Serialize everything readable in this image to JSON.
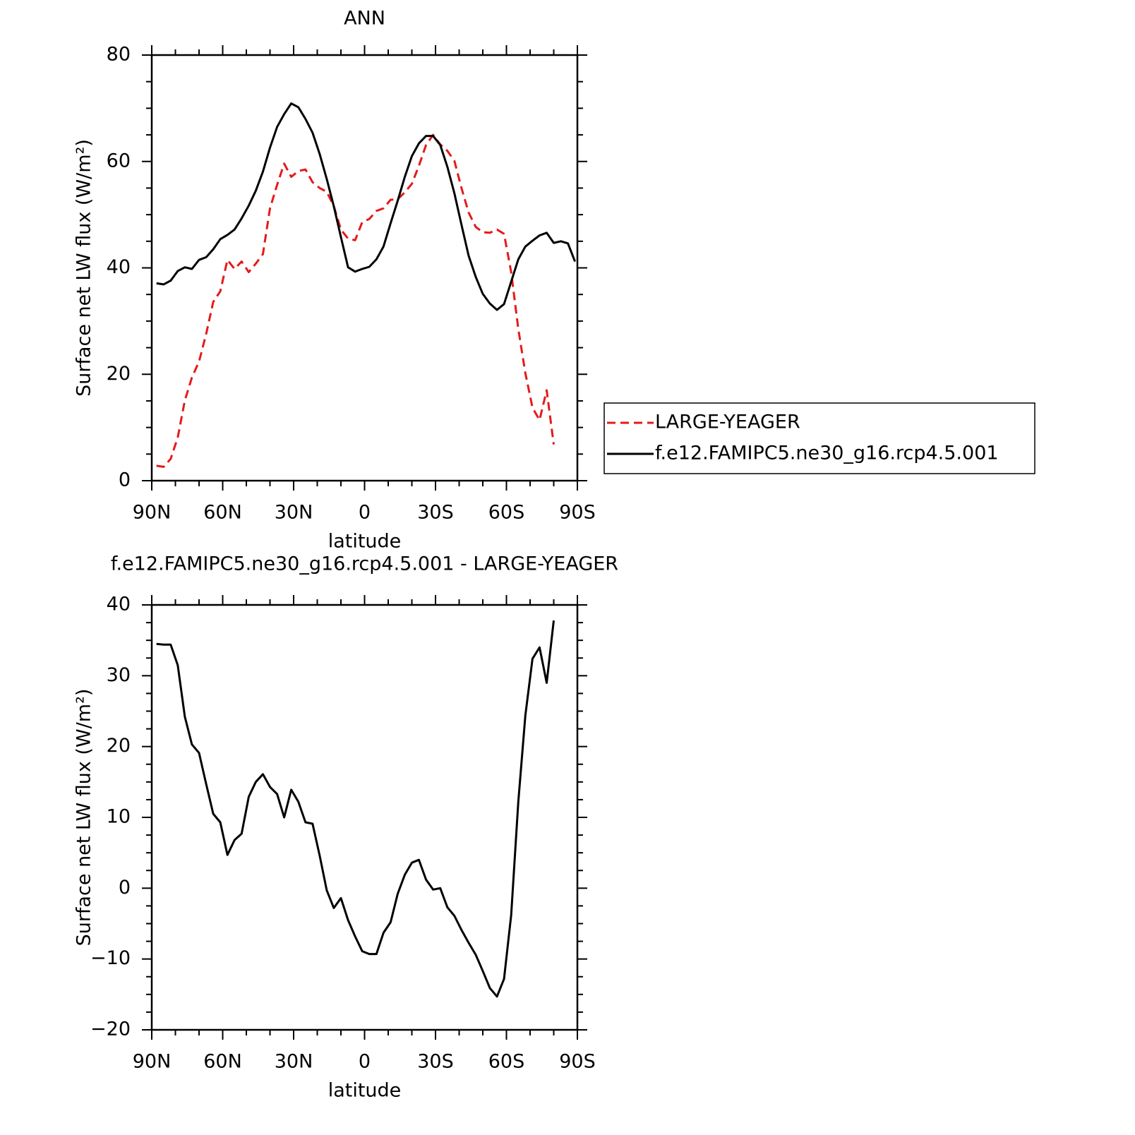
{
  "chart_data": [
    {
      "type": "line",
      "title": "ANN",
      "x_label": "latitude",
      "y_label": "Surface net LW flux (W/m²)",
      "x": [
        88,
        85,
        82,
        79,
        76,
        73,
        70,
        67,
        64,
        61,
        58,
        55,
        52,
        49,
        46,
        43,
        40,
        37,
        34,
        31,
        28,
        25,
        22,
        19,
        16,
        13,
        10,
        7,
        4,
        1,
        -2,
        -5,
        -8,
        -11,
        -14,
        -17,
        -20,
        -23,
        -26,
        -29,
        -32,
        -35,
        -38,
        -41,
        -44,
        -47,
        -50,
        -53,
        -56,
        -59,
        -62,
        -65,
        -68,
        -71,
        -74,
        -77,
        -80,
        -83,
        -86,
        -89
      ],
      "series": [
        {
          "name": "LARGE-YEAGER",
          "color": "#e41a1c",
          "dashed": true,
          "values": [
            2.8,
            2.6,
            4.1,
            8.1,
            15.1,
            19.4,
            22.4,
            27.6,
            33.6,
            35.6,
            41.5,
            39.8,
            41.2,
            39.2,
            40.8,
            42.6,
            51.2,
            55.6,
            59.6,
            57.1,
            58.2,
            58.5,
            56.1,
            55.0,
            54.3,
            51.6,
            47.2,
            45.5,
            45.2,
            48.6,
            49.2,
            50.7,
            51.2,
            52.8,
            52.9,
            54.2,
            55.8,
            59.2,
            63.1,
            65.0,
            63.2,
            62.0,
            60.1,
            55.0,
            50.4,
            47.7,
            46.7,
            46.6,
            47.2,
            46.4,
            39.2,
            28.5,
            20.2,
            13.7,
            11.4,
            17.0,
            6.8,
            null,
            null,
            null
          ]
        },
        {
          "name": "f.e12.FAMIPC5.ne30_g16.rcp4.5.001",
          "color": "#000000",
          "dashed": false,
          "values": [
            37.1,
            36.9,
            37.6,
            39.4,
            40.1,
            39.8,
            41.5,
            42.0,
            43.5,
            45.4,
            46.2,
            47.2,
            49.3,
            51.7,
            54.5,
            58.1,
            62.6,
            66.5,
            68.9,
            70.9,
            70.2,
            68.0,
            65.4,
            61.4,
            56.7,
            51.6,
            45.8,
            40.1,
            39.3,
            39.8,
            40.2,
            41.6,
            44.0,
            48.4,
            52.6,
            57.1,
            61.0,
            63.4,
            64.8,
            64.8,
            63.1,
            59.0,
            54.0,
            48.1,
            42.3,
            38.3,
            35.1,
            33.3,
            32.1,
            33.2,
            37.4,
            41.6,
            44.0,
            45.1,
            46.1,
            46.6,
            44.7,
            45.0,
            44.6,
            41.2
          ]
        }
      ],
      "xlim": [
        90,
        -90
      ],
      "xticks": [
        {
          "value": 90,
          "label": "90N"
        },
        {
          "value": 60,
          "label": "60N"
        },
        {
          "value": 30,
          "label": "30N"
        },
        0,
        {
          "value": -30,
          "label": "30S"
        },
        {
          "value": -60,
          "label": "60S"
        },
        {
          "value": -90,
          "label": "90S"
        }
      ],
      "ylim": [
        0,
        80
      ],
      "yticks": [
        0,
        20,
        40,
        60,
        80
      ],
      "legend": "right"
    },
    {
      "type": "line",
      "title": "f.e12.FAMIPC5.ne30_g16.rcp4.5.001 - LARGE-YEAGER",
      "x_label": "latitude",
      "y_label": "Surface net LW flux (W/m²)",
      "x": [
        88,
        85,
        82,
        79,
        76,
        73,
        70,
        67,
        64,
        61,
        58,
        55,
        52,
        49,
        46,
        43,
        40,
        37,
        34,
        31,
        28,
        25,
        22,
        19,
        16,
        13,
        10,
        7,
        4,
        1,
        -2,
        -5,
        -8,
        -11,
        -14,
        -17,
        -20,
        -23,
        -26,
        -29,
        -32,
        -35,
        -38,
        -41,
        -44,
        -47,
        -50,
        -53,
        -56,
        -59,
        -62,
        -65,
        -68,
        -71,
        -74,
        -77,
        -80,
        -83,
        -86,
        -89
      ],
      "series": [
        {
          "color": "#000000",
          "dashed": false,
          "values": [
            34.5,
            34.4,
            34.4,
            31.5,
            24.2,
            20.3,
            19.1,
            14.7,
            10.5,
            9.3,
            4.7,
            6.8,
            7.7,
            12.9,
            15.0,
            16.1,
            14.3,
            13.3,
            10.0,
            13.9,
            12.2,
            9.3,
            9.1,
            4.6,
            -0.3,
            -2.8,
            -1.4,
            -4.5,
            -6.8,
            -8.9,
            -9.3,
            -9.3,
            -6.3,
            -4.8,
            -0.8,
            1.9,
            3.6,
            4.0,
            1.2,
            -0.2,
            0.0,
            -2.7,
            -3.9,
            -5.9,
            -7.7,
            -9.4,
            -11.7,
            -14.1,
            -15.3,
            -12.8,
            -3.8,
            12.2,
            24.4,
            32.4,
            34.0,
            29.0,
            37.8,
            null,
            null,
            null
          ]
        }
      ],
      "xlim": [
        90,
        -90
      ],
      "xticks": [
        {
          "value": 90,
          "label": "90N"
        },
        {
          "value": 60,
          "label": "60N"
        },
        {
          "value": 30,
          "label": "30N"
        },
        0,
        {
          "value": -30,
          "label": "30S"
        },
        {
          "value": -60,
          "label": "60S"
        },
        {
          "value": -90,
          "label": "90S"
        }
      ],
      "ylim": [
        -20,
        40
      ],
      "yticks": [
        {
          "value": -20,
          "label": "−20"
        },
        {
          "value": -10,
          "label": "−10"
        },
        0,
        10,
        20,
        30,
        40
      ]
    }
  ]
}
